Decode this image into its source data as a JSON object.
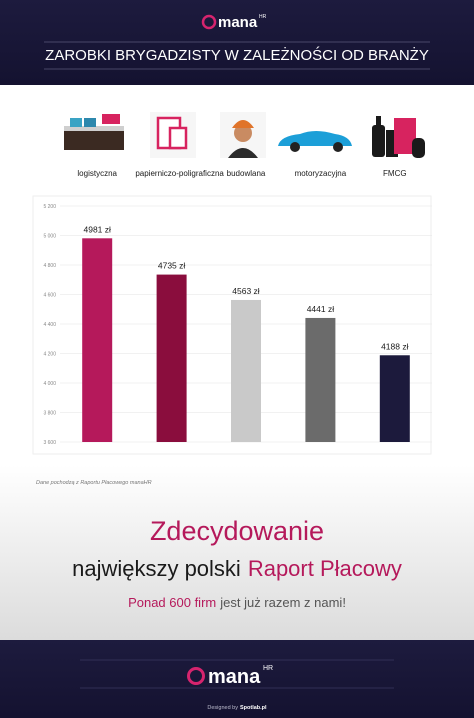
{
  "header": {
    "logo": "mana",
    "logo_sup": "HR",
    "title": "ZAROBKI BRYGADZISTY W ZALEŻNOŚCI OD BRANŻY"
  },
  "chart_data": {
    "type": "bar",
    "categories": [
      "logistyczna",
      "papierniczo-poligraficzna",
      "budowlana",
      "motoryzacyjna",
      "FMCG"
    ],
    "values": [
      4981,
      4735,
      4563,
      4441,
      4188
    ],
    "value_labels": [
      "4981 zł",
      "4735 zł",
      "4563 zł",
      "4441 zł",
      "4188 zł"
    ],
    "colors": [
      "#b5195b",
      "#8a0d3d",
      "#c9c9c9",
      "#6b6b6b",
      "#1c1a3c"
    ],
    "ylim": [
      3600,
      5200
    ],
    "yticks": [
      {
        "value": 3600,
        "label": "3 600"
      },
      {
        "value": 3800,
        "label": "3 800"
      },
      {
        "value": 4000,
        "label": "4 000"
      },
      {
        "value": 4200,
        "label": "4 200"
      },
      {
        "value": 4400,
        "label": "4 400"
      },
      {
        "value": 4600,
        "label": "4 600"
      },
      {
        "value": 4800,
        "label": "4 800"
      },
      {
        "value": 5000,
        "label": "5 000"
      },
      {
        "value": 5200,
        "label": "5 200"
      }
    ],
    "grid": true,
    "source": "Dane pochodzą z Raportu Płacowego manaHR"
  },
  "promo": {
    "line1": "Zdecydowanie",
    "line2a": "największy polski",
    "line2b": "Raport Płacowy",
    "line3a": "Ponad 600 firm",
    "line3b": "jest już razem z nami!"
  },
  "footer": {
    "logo": "mana",
    "logo_sup": "HR",
    "credit": "Designed by",
    "credit_brand": "Spotlab.pl"
  }
}
